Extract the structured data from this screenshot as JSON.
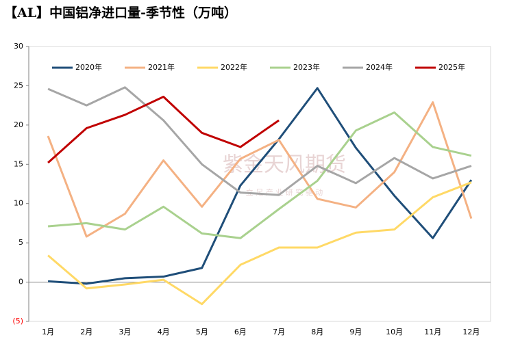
{
  "chart_data": {
    "type": "line",
    "title": "【AL】中国铝净进口量-季节性（万吨）",
    "watermark": [
      "紫金天风期货",
      "立 足 产 业   研 究 驱 动"
    ],
    "categories": [
      "1月",
      "2月",
      "3月",
      "4月",
      "5月",
      "6月",
      "7月",
      "8月",
      "9月",
      "10月",
      "11月",
      "12月"
    ],
    "series": [
      {
        "name": "2020年",
        "color": "#1f4e79",
        "values": [
          0.1,
          -0.2,
          0.5,
          0.7,
          1.8,
          12.3,
          18.2,
          24.7,
          17.1,
          11.0,
          5.6,
          13.0
        ]
      },
      {
        "name": "2021年",
        "color": "#f4b183",
        "values": [
          18.6,
          5.8,
          8.7,
          15.5,
          9.6,
          15.7,
          18.1,
          10.6,
          9.5,
          14.0,
          22.9,
          8.1
        ]
      },
      {
        "name": "2022年",
        "color": "#ffd966",
        "values": [
          3.4,
          -0.8,
          -0.3,
          0.3,
          -2.8,
          2.2,
          4.4,
          4.4,
          6.3,
          6.7,
          10.8,
          12.7
        ]
      },
      {
        "name": "2023年",
        "color": "#a9d18e",
        "values": [
          7.1,
          7.5,
          6.7,
          9.6,
          6.2,
          5.6,
          9.3,
          12.9,
          19.3,
          21.6,
          17.2,
          16.1
        ]
      },
      {
        "name": "2024年",
        "color": "#a6a6a6",
        "values": [
          24.6,
          22.5,
          24.8,
          20.6,
          15.0,
          11.4,
          11.1,
          14.8,
          12.6,
          15.8,
          13.2,
          14.8
        ]
      },
      {
        "name": "2025年",
        "color": "#c00000",
        "values": [
          15.2,
          19.6,
          21.3,
          23.6,
          19.0,
          17.2,
          20.6,
          null,
          null,
          null,
          null,
          null
        ]
      }
    ],
    "ylim": [
      -5,
      30
    ],
    "yticks": [
      {
        "value": -5,
        "label": "(5)"
      },
      0,
      5,
      10,
      15,
      20,
      25,
      30
    ],
    "negative_tick_color": "#ff0000",
    "legend": "top"
  }
}
